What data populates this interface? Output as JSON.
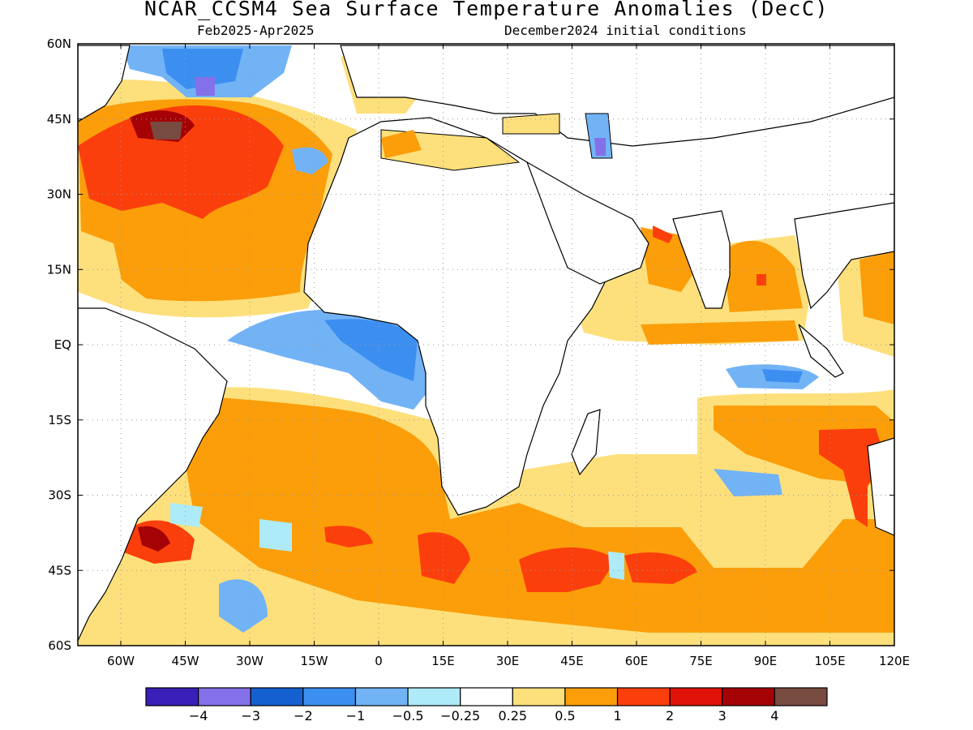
{
  "header": {
    "title": "NCAR_CCSM4 Sea Surface Temperature Anomalies (DecC)",
    "period": "Feb2025-Apr2025",
    "init": "December2024 initial conditions"
  },
  "map": {
    "lon_range": [
      -70,
      120
    ],
    "lat_range": [
      -60,
      60
    ],
    "lat_ticks": [
      {
        "v": 60,
        "t": "60N"
      },
      {
        "v": 45,
        "t": "45N"
      },
      {
        "v": 30,
        "t": "30N"
      },
      {
        "v": 15,
        "t": "15N"
      },
      {
        "v": 0,
        "t": "EQ"
      },
      {
        "v": -15,
        "t": "15S"
      },
      {
        "v": -30,
        "t": "30S"
      },
      {
        "v": -45,
        "t": "45S"
      },
      {
        "v": -60,
        "t": "60S"
      }
    ],
    "lon_ticks": [
      {
        "v": -60,
        "t": "60W"
      },
      {
        "v": -45,
        "t": "45W"
      },
      {
        "v": -30,
        "t": "30W"
      },
      {
        "v": -15,
        "t": "15W"
      },
      {
        "v": 0,
        "t": "0"
      },
      {
        "v": 15,
        "t": "15E"
      },
      {
        "v": 30,
        "t": "30E"
      },
      {
        "v": 45,
        "t": "45E"
      },
      {
        "v": 60,
        "t": "60E"
      },
      {
        "v": 75,
        "t": "75E"
      },
      {
        "v": 90,
        "t": "90E"
      },
      {
        "v": 105,
        "t": "105E"
      },
      {
        "v": 120,
        "t": "120E"
      }
    ],
    "grid": "dotted"
  },
  "colorbar": {
    "colors": [
      "#3a1fb8",
      "#8470e8",
      "#1560d0",
      "#3c8ff0",
      "#72b3f6",
      "#aeebf8",
      "#ffffff",
      "#fde07c",
      "#fb9e0a",
      "#fb3f0c",
      "#de1208",
      "#a50206",
      "#784b40"
    ],
    "labels": [
      "−4",
      "−3",
      "−2",
      "−1",
      "−0.5",
      "−0.25",
      "0.25",
      "0.5",
      "1",
      "2",
      "3",
      "4"
    ]
  },
  "colors": {
    "land": "#ffffff",
    "coast": "#000000",
    "yellow": "#fde07c",
    "orange": "#fb9e0a",
    "red": "#fb3f0c",
    "darkred": "#de1208",
    "brown": "#784b40",
    "lightblue": "#72b3f6",
    "midblue": "#3c8ff0",
    "cyan": "#aeebf8",
    "purple": "#8470e8"
  }
}
